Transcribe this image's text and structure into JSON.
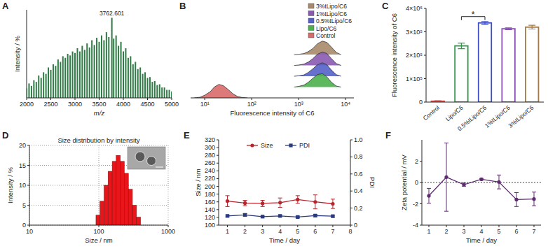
{
  "chart_data": [
    {
      "panel": "A",
      "type": "spectrum",
      "x_label": "m/z",
      "y_label": "Intensity / %",
      "color": "#2f7a45",
      "x": [
        2000,
        2050,
        2100,
        2150,
        2200,
        2250,
        2300,
        2350,
        2400,
        2450,
        2500,
        2550,
        2600,
        2650,
        2700,
        2750,
        2800,
        2850,
        2900,
        2950,
        3000,
        3050,
        3100,
        3150,
        3200,
        3250,
        3300,
        3350,
        3400,
        3450,
        3500,
        3550,
        3600,
        3650,
        3700,
        3762.601,
        3800,
        3850,
        3900,
        3950,
        4000,
        4050,
        4100,
        4150,
        4200,
        4250,
        4300,
        4350,
        4400,
        4450,
        4500,
        4550,
        4600,
        4650,
        4700,
        4750,
        4800,
        4850,
        4900,
        4950,
        5000
      ],
      "values": [
        12,
        18,
        15,
        22,
        20,
        28,
        25,
        32,
        30,
        38,
        35,
        42,
        40,
        48,
        45,
        52,
        50,
        55,
        53,
        58,
        56,
        62,
        58,
        65,
        60,
        68,
        63,
        72,
        66,
        75,
        70,
        78,
        72,
        82,
        76,
        100,
        74,
        78,
        65,
        70,
        58,
        62,
        50,
        52,
        42,
        45,
        36,
        38,
        30,
        32,
        25,
        26,
        20,
        21,
        16,
        17,
        13,
        13,
        10,
        10,
        8
      ],
      "xlim": [
        2000,
        5000
      ],
      "xticks": [
        2000,
        2500,
        3000,
        3500,
        4000,
        4500,
        5000
      ],
      "ylim": [
        0,
        110
      ],
      "tick_labels": "x",
      "annotations": [
        {
          "text": "3762.601",
          "x": 3762.601,
          "y": 100
        }
      ]
    },
    {
      "panel": "B",
      "type": "ridgeline",
      "x_label": "Fluorescence intensity of C6",
      "log": "x",
      "legend": "top-right",
      "tick_labels": "x",
      "xlim": [
        5,
        15000
      ],
      "xticks": [
        {
          "value": 10,
          "label": "10¹"
        },
        {
          "value": 100,
          "label": "10²"
        },
        {
          "value": 1000,
          "label": "10³"
        },
        {
          "value": 10000,
          "label": "10⁴"
        }
      ],
      "ylim": [
        0,
        1
      ],
      "series": [
        {
          "name": "Control",
          "color": "#d96a6a",
          "x": [
            6,
            8,
            10,
            13,
            16,
            20,
            25,
            32,
            40,
            50,
            63,
            80
          ],
          "values": [
            0,
            0.05,
            0.2,
            0.45,
            0.8,
            1,
            0.9,
            0.6,
            0.3,
            0.1,
            0.03,
            0
          ]
        },
        {
          "name": "Lipo/C6",
          "color": "#4cb04c",
          "x": [
            800,
            1000,
            1300,
            1600,
            2000,
            2500,
            3200,
            4000,
            5000,
            6300,
            8000
          ],
          "values": [
            0,
            0.05,
            0.15,
            0.35,
            0.65,
            0.92,
            1,
            0.75,
            0.35,
            0.08,
            0
          ]
        },
        {
          "name": "0.5%tLipo/C6",
          "color": "#5560c8",
          "x": [
            800,
            1000,
            1300,
            1600,
            2000,
            2500,
            3200,
            4000,
            5000,
            6300,
            8000
          ],
          "values": [
            0,
            0.03,
            0.1,
            0.28,
            0.55,
            0.85,
            1,
            0.85,
            0.45,
            0.12,
            0
          ]
        },
        {
          "name": "1%tLipo/C6",
          "color": "#8a5ab0",
          "x": [
            800,
            1000,
            1300,
            1600,
            2000,
            2500,
            3200,
            4000,
            5000,
            6300,
            8000
          ],
          "values": [
            0,
            0.03,
            0.1,
            0.25,
            0.5,
            0.82,
            1,
            0.88,
            0.5,
            0.14,
            0
          ]
        },
        {
          "name": "3%tLipo/C6",
          "color": "#a9896a",
          "x": [
            800,
            1000,
            1300,
            1600,
            2000,
            2500,
            3200,
            4000,
            5000,
            6300,
            8000
          ],
          "values": [
            0,
            0.02,
            0.08,
            0.22,
            0.45,
            0.8,
            1,
            0.9,
            0.55,
            0.16,
            0
          ]
        }
      ]
    },
    {
      "panel": "C",
      "type": "bar",
      "y_label": "Fluorescence intensity of C6",
      "categories": [
        "Control",
        "Lipo/C6",
        "0.5%tLipo/C6",
        "1%tLipo/C6",
        "3%tLipo/C6"
      ],
      "values": [
        4000,
        240000,
        338000,
        313000,
        320000
      ],
      "errors": [
        1500,
        12000,
        6000,
        4000,
        8000
      ],
      "colors": [
        "#d9534f",
        "#2e9a4a",
        "#3f4fc0",
        "#8a4fb5",
        "#a07a4a"
      ],
      "ylim": [
        0,
        400000
      ],
      "yticks": [
        0,
        {
          "value": 100000,
          "label": "1×10⁵"
        },
        {
          "value": 200000,
          "label": "2×10⁵"
        },
        {
          "value": 300000,
          "label": "3×10⁵"
        },
        {
          "value": 400000,
          "label": "4×10⁵"
        }
      ],
      "annotations": [
        {
          "text": "*",
          "from": 1,
          "to": 2,
          "y": 365000
        }
      ]
    },
    {
      "panel": "D",
      "type": "histogram",
      "title": "Size distribution by intensity",
      "x_label": "Size / nm",
      "y_label": "Intensity / %",
      "log": "x",
      "grid": true,
      "color": "#e8161a",
      "bins": [
        91,
        104,
        119,
        136,
        156,
        178,
        204,
        233,
        267,
        305,
        349,
        400
      ],
      "counts": [
        2.5,
        6,
        10,
        13.5,
        16,
        17.5,
        16,
        13,
        9,
        5,
        2
      ],
      "xlim": [
        10,
        1000
      ],
      "xticks": [
        10,
        100,
        1000
      ],
      "ylim": [
        0,
        20
      ],
      "yticks": [
        0,
        5,
        10,
        15,
        20
      ]
    },
    {
      "panel": "E",
      "type": "line",
      "x_label": "Time / day",
      "y_label": "Size / nm",
      "y2_label": "PDI",
      "legend": "top",
      "xlim": [
        0.5,
        8
      ],
      "xticks": [
        1,
        2,
        3,
        4,
        5,
        6,
        7,
        8
      ],
      "ylim": [
        100,
        320
      ],
      "yticks": [
        100,
        120,
        140,
        160,
        180,
        200,
        220,
        240,
        260,
        280,
        300,
        320
      ],
      "y2lim": [
        0,
        1
      ],
      "y2ticks": [
        0,
        0.2,
        0.4,
        0.6,
        0.8,
        {
          "value": 1,
          "label": "1.0"
        }
      ],
      "x": [
        1,
        2,
        3,
        4,
        5,
        6,
        7
      ],
      "series": [
        {
          "name": "Size",
          "color": "#b5262c",
          "marker": "circle",
          "values": [
            162,
            157,
            156,
            158,
            166,
            160,
            155
          ],
          "errors": [
            14,
            7,
            8,
            12,
            10,
            18,
            12
          ]
        },
        {
          "name": "PDI",
          "color": "#2a3b7d",
          "marker": "square",
          "axis": "y2",
          "values": [
            0.108,
            0.12,
            0.1,
            0.108,
            0.095,
            0.112,
            0.105
          ],
          "errors": [
            0.01,
            0.015,
            0.006,
            0.008,
            0.01,
            0.015,
            0.01
          ]
        }
      ]
    },
    {
      "panel": "F",
      "type": "line",
      "x_label": "Time / day",
      "y_label": "Zeta potential / mV",
      "hline": 0,
      "xlim": [
        0.6,
        7.4
      ],
      "xticks": [
        1,
        2,
        3,
        4,
        5,
        6,
        7
      ],
      "ylim": [
        -4,
        4
      ],
      "yticks": [
        -4,
        -2,
        0,
        2
      ],
      "x": [
        1,
        2,
        3,
        4,
        5,
        6,
        7
      ],
      "series": [
        {
          "color": "#5e2b6f",
          "marker": "circle",
          "values": [
            -1.25,
            0.5,
            -0.2,
            0.3,
            0.05,
            -1.6,
            -1.55
          ],
          "errors": [
            0.7,
            3.2,
            0.15,
            0.08,
            0.65,
            0.65,
            0.65
          ]
        }
      ]
    }
  ]
}
